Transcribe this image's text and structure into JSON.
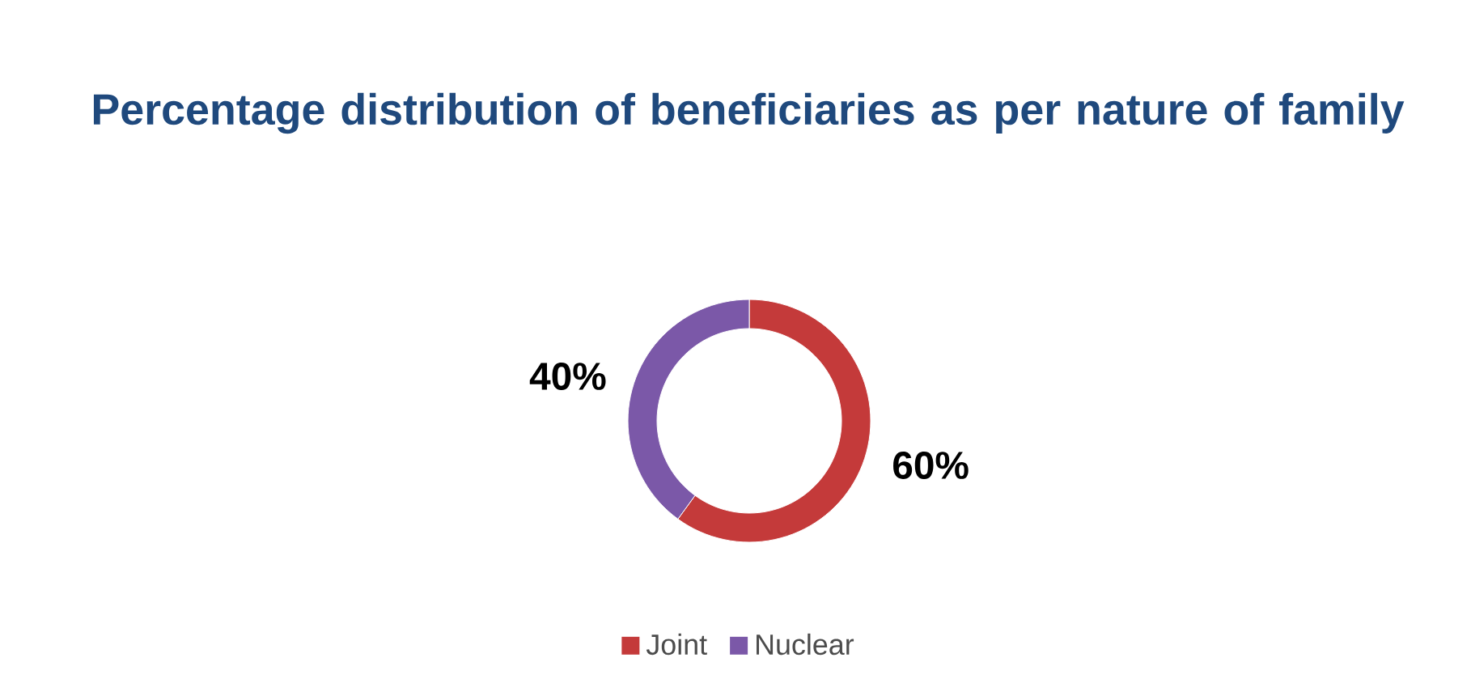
{
  "chart_data": {
    "type": "donut",
    "title": "Percentage distribution of beneficiaries as per nature of family",
    "categories": [
      "Joint",
      "Nuclear"
    ],
    "values": [
      60,
      40
    ],
    "value_labels": [
      "60%",
      "40%"
    ],
    "colors": [
      "#c43a3a",
      "#7b58a8"
    ],
    "legend": "bottom"
  }
}
